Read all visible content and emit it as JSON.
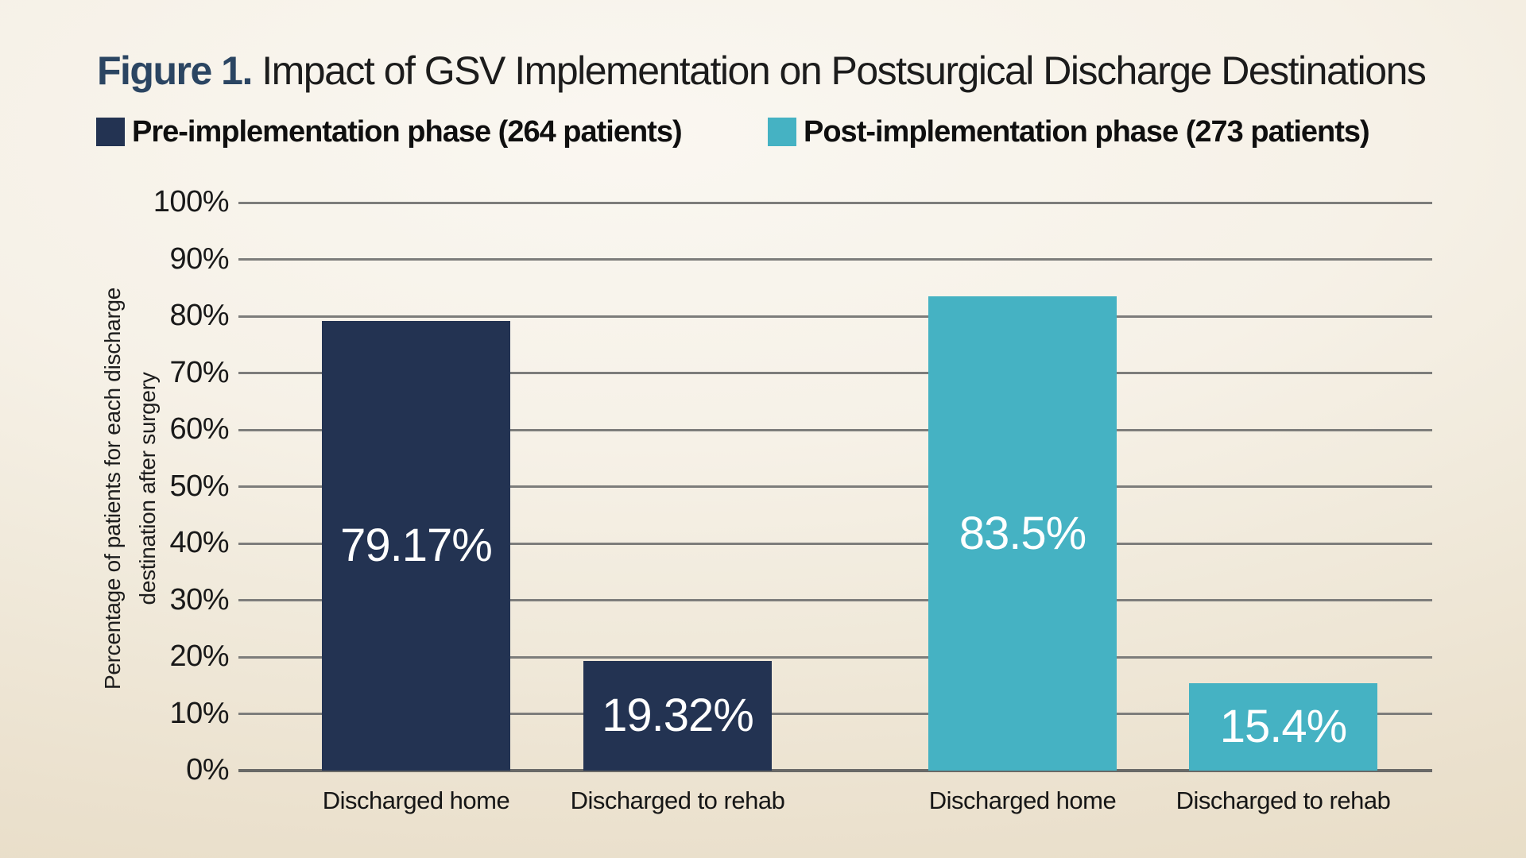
{
  "figure": {
    "label": "Figure 1.",
    "title": " Impact of GSV Implementation on Postsurgical Discharge Destinations"
  },
  "legend": [
    {
      "label": "Pre-implementation phase (264 patients)",
      "color": "#233352"
    },
    {
      "label": "Post-implementation phase (273 patients)",
      "color": "#45b2c3"
    }
  ],
  "colors": {
    "pre_phase_navy": "#233352",
    "post_phase_teal": "#45b2c3",
    "gridline_gray": "#7d7d7b",
    "axis_gray": "#696967",
    "title_accent_navy": "#2b4562",
    "background_cream": "#f3ede0",
    "value_label_white": "#ffffff"
  },
  "chart_data": {
    "type": "bar",
    "title": "Impact of GSV Implementation on Postsurgical Discharge Destinations",
    "categories": [
      "Discharged home",
      "Discharged to rehab"
    ],
    "series": [
      {
        "name": "Pre-implementation phase (264 patients)",
        "color": "#233352",
        "values": [
          79.17,
          19.32
        ],
        "value_labels": [
          "79.17%",
          "19.32%"
        ]
      },
      {
        "name": "Post-implementation phase (273 patients)",
        "color": "#45b2c3",
        "values": [
          83.5,
          15.4
        ],
        "value_labels": [
          "83.5%",
          "15.4%"
        ]
      }
    ],
    "xlabel": "",
    "ylabel": "Percentage of patients for each discharge destination after surgery",
    "ylabel_lines": [
      "Percentage of patients for each discharge",
      "destination after surgery"
    ],
    "ylim": [
      0,
      100
    ],
    "ytick_step": 10,
    "ytick_labels": [
      "0%",
      "10%",
      "20%",
      "30%",
      "40%",
      "50%",
      "60%",
      "70%",
      "80%",
      "90%",
      "100%"
    ],
    "grid": true,
    "legend_position": "top",
    "value_labels_inside_bars": true
  }
}
